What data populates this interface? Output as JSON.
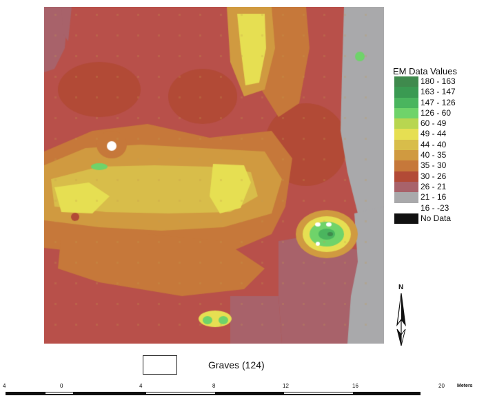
{
  "legend": {
    "title": "EM Data Values",
    "classes": [
      {
        "label": "180 - 163",
        "color": "#3f8a4d"
      },
      {
        "label": "163 - 147",
        "color": "#3a9a52"
      },
      {
        "label": "147 - 126",
        "color": "#4ab55e"
      },
      {
        "label": "126 - 60",
        "color": "#6fd36a"
      },
      {
        "label": "60 - 49",
        "color": "#b8d650"
      },
      {
        "label": "49 - 44",
        "color": "#e6df52"
      },
      {
        "label": "44 - 40",
        "color": "#d8bd4a"
      },
      {
        "label": "40 - 35",
        "color": "#d09a40"
      },
      {
        "label": "35 - 30",
        "color": "#c6783a"
      },
      {
        "label": "30 - 26",
        "color": "#b24a36"
      },
      {
        "label": "26 - 21",
        "color": "#a8626a"
      },
      {
        "label": "21 - 16",
        "color": "#a9a9ab"
      },
      {
        "label": "16 - -23",
        "color": "#ffffff"
      },
      {
        "label": "No Data",
        "color": "#111111"
      }
    ]
  },
  "north_arrow": {
    "label": "N"
  },
  "graves": {
    "label": "Graves (124)"
  },
  "scale_bar": {
    "ticks": [
      "4",
      "0",
      "4",
      "8",
      "12",
      "16",
      "20"
    ],
    "units": "Meters"
  },
  "map": {
    "background_color": "#b8504a",
    "grid_cell_color": "#c39a4e"
  }
}
